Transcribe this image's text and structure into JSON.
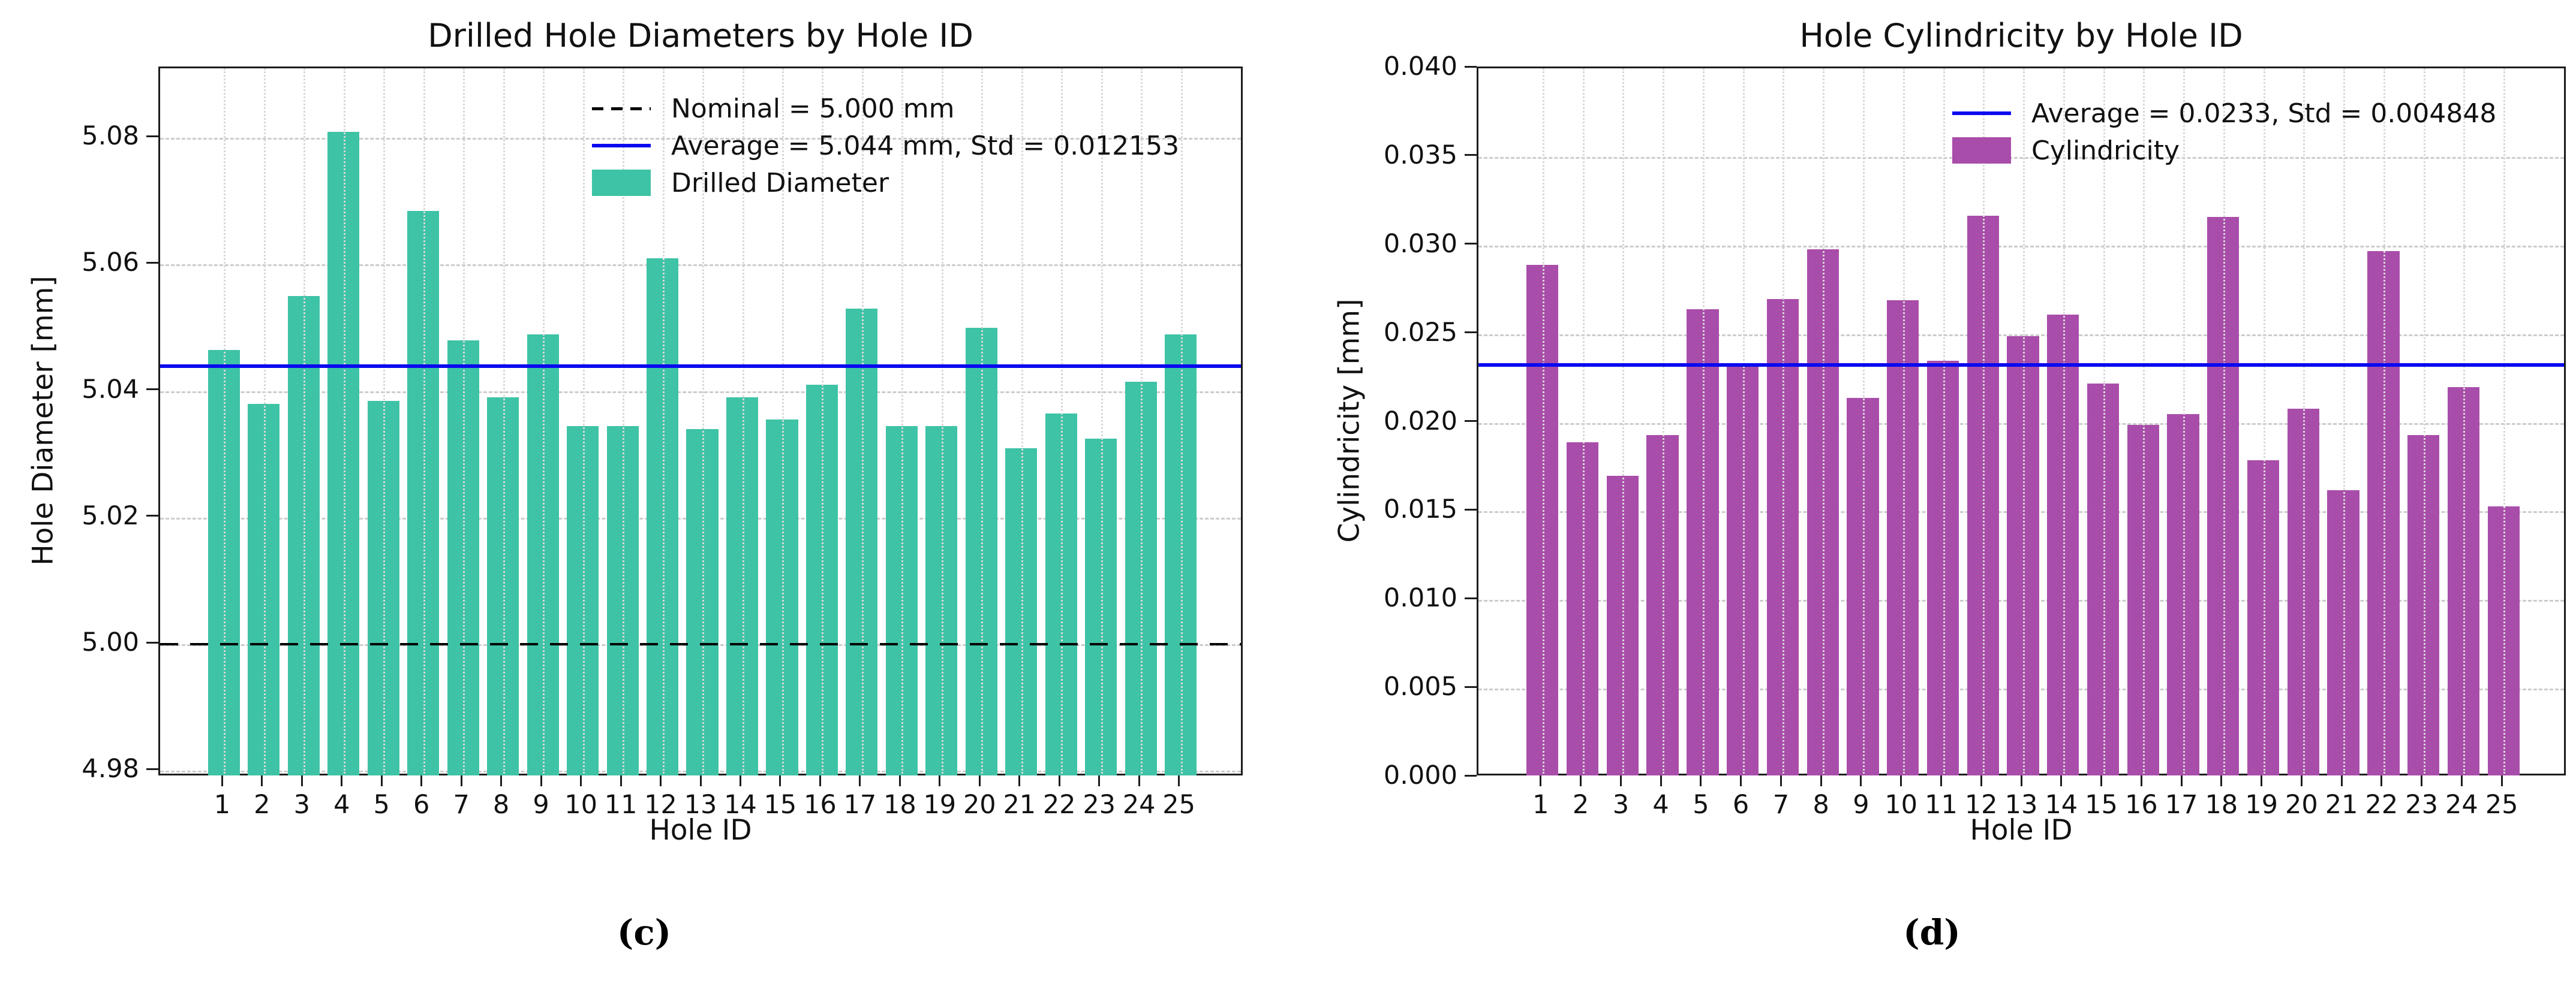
{
  "figure": {
    "captions": {
      "c": "(c)",
      "d": "(d)"
    }
  },
  "chart_data": [
    {
      "id": "c",
      "type": "bar",
      "title": "Drilled Hole Diameters by Hole ID",
      "xlabel": "Hole ID",
      "ylabel": "Hole Diameter [mm]",
      "bar_color": "#3ec3a6",
      "grid": true,
      "legend_position": "upper center-right, no frame",
      "categories": [
        1,
        2,
        3,
        4,
        5,
        6,
        7,
        8,
        9,
        10,
        11,
        12,
        13,
        14,
        15,
        16,
        17,
        18,
        19,
        20,
        21,
        22,
        23,
        24,
        25
      ],
      "values": [
        5.0465,
        5.038,
        5.055,
        5.081,
        5.0385,
        5.0685,
        5.048,
        5.039,
        5.049,
        5.0345,
        5.0345,
        5.061,
        5.034,
        5.039,
        5.0355,
        5.041,
        5.053,
        5.0345,
        5.0345,
        5.05,
        5.031,
        5.0365,
        5.0325,
        5.0415,
        5.049
      ],
      "ylim": [
        4.979,
        5.091
      ],
      "yticks": [
        4.98,
        5.0,
        5.02,
        5.04,
        5.06,
        5.08
      ],
      "ytick_labels": [
        "4.98",
        "5.00",
        "5.02",
        "5.04",
        "5.06",
        "5.08"
      ],
      "xtick_labels": [
        "1",
        "2",
        "3",
        "4",
        "5",
        "6",
        "7",
        "8",
        "9",
        "10",
        "11",
        "12",
        "13",
        "14",
        "15",
        "16",
        "17",
        "18",
        "19",
        "20",
        "21",
        "22",
        "23",
        "24",
        "25"
      ],
      "reference_lines": [
        {
          "value": 5.0,
          "style": "dashed",
          "color": "#000000"
        },
        {
          "value": 5.044,
          "style": "solid",
          "color": "#0a0af0"
        }
      ],
      "legend": [
        {
          "sample": "dash",
          "color": "#000000",
          "label": "Nominal = 5.000 mm"
        },
        {
          "sample": "line",
          "color": "#0a0af0",
          "label": "Average = 5.044 mm, Std = 0.012153"
        },
        {
          "sample": "swatch",
          "color": "#3ec3a6",
          "label": "Drilled Diameter"
        }
      ]
    },
    {
      "id": "d",
      "type": "bar",
      "title": "Hole Cylindricity by Hole ID",
      "xlabel": "Hole ID",
      "ylabel": "Cylindricity [mm]",
      "bar_color": "#a94daa",
      "grid": true,
      "legend_position": "upper center-right, no frame",
      "categories": [
        1,
        2,
        3,
        4,
        5,
        6,
        7,
        8,
        9,
        10,
        11,
        12,
        13,
        14,
        15,
        16,
        17,
        18,
        19,
        20,
        21,
        22,
        23,
        24,
        25
      ],
      "values": [
        0.0289,
        0.0189,
        0.017,
        0.0193,
        0.0264,
        0.0232,
        0.027,
        0.0298,
        0.0214,
        0.0269,
        0.0235,
        0.0317,
        0.0249,
        0.0261,
        0.0222,
        0.0199,
        0.0205,
        0.0316,
        0.0179,
        0.0208,
        0.0162,
        0.0297,
        0.0193,
        0.022,
        0.0153
      ],
      "ylim": [
        0.0,
        0.04
      ],
      "yticks": [
        0.0,
        0.005,
        0.01,
        0.015,
        0.02,
        0.025,
        0.03,
        0.035,
        0.04
      ],
      "ytick_labels": [
        "0.000",
        "0.005",
        "0.010",
        "0.015",
        "0.020",
        "0.025",
        "0.030",
        "0.035",
        "0.040"
      ],
      "xtick_labels": [
        "1",
        "2",
        "3",
        "4",
        "5",
        "6",
        "7",
        "8",
        "9",
        "10",
        "11",
        "12",
        "13",
        "14",
        "15",
        "16",
        "17",
        "18",
        "19",
        "20",
        "21",
        "22",
        "23",
        "24",
        "25"
      ],
      "reference_lines": [
        {
          "value": 0.0233,
          "style": "solid",
          "color": "#0a0af0"
        }
      ],
      "legend": [
        {
          "sample": "line",
          "color": "#0a0af0",
          "label": "Average = 0.0233, Std = 0.004848"
        },
        {
          "sample": "swatch",
          "color": "#a94daa",
          "label": "Cylindricity"
        }
      ]
    }
  ]
}
